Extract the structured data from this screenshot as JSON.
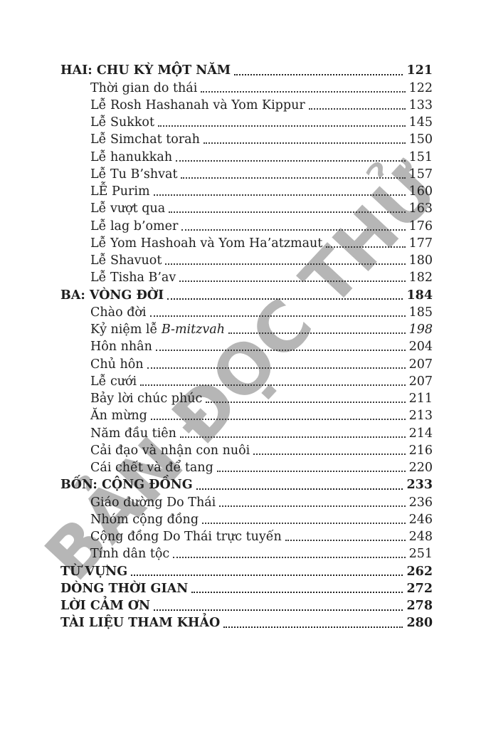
{
  "page": {
    "watermark": "BẢN ĐỌC THỬ",
    "background_color": "#ffffff",
    "text_color": "#1e1e1e",
    "watermark_color": "#b6b6b6"
  },
  "toc": {
    "entries": [
      {
        "label": "HAI: CHU KỲ MỘT NĂM",
        "page": "121",
        "level": 0,
        "bold": true
      },
      {
        "label": "Thời gian do thái",
        "page": "122",
        "level": 1,
        "bold": false
      },
      {
        "label": "Lễ Rosh Hashanah và Yom Kippur",
        "page": "133",
        "level": 1,
        "bold": false
      },
      {
        "label": "Lễ Sukkot",
        "page": "145",
        "level": 1,
        "bold": false
      },
      {
        "label": "Lễ Simchat torah",
        "page": "150",
        "level": 1,
        "bold": false
      },
      {
        "label": "Lễ hanukkah",
        "page": "151",
        "level": 1,
        "bold": false
      },
      {
        "label": "Lễ Tu B’shvat",
        "page": "157",
        "level": 1,
        "bold": false
      },
      {
        "label": "LỄ Purim",
        "page": "160",
        "level": 1,
        "bold": false
      },
      {
        "label": "Lễ vượt qua",
        "page": "163",
        "level": 1,
        "bold": false
      },
      {
        "label": "Lễ lag b’omer",
        "page": "176",
        "level": 1,
        "bold": false
      },
      {
        "label": "Lễ Yom Hashoah và Yom Ha’atzmaut",
        "page": "177",
        "level": 1,
        "bold": false
      },
      {
        "label": "Lễ Shavuot",
        "page": "180",
        "level": 1,
        "bold": false
      },
      {
        "label": "Lễ Tisha B’av",
        "page": "182",
        "level": 1,
        "bold": false
      },
      {
        "label": "BA: VÒNG ĐỜI",
        "page": "184",
        "level": 0,
        "bold": true
      },
      {
        "label": "Chào đời",
        "page": "185",
        "level": 1,
        "bold": false
      },
      {
        "label": "Kỷ niệm lễ ",
        "italic_suffix": "B-mitzvah",
        "page": "198",
        "page_italic": true,
        "level": 1,
        "bold": false
      },
      {
        "label": "Hôn nhân",
        "page": "204",
        "level": 1,
        "bold": false
      },
      {
        "label": "Chủ hôn",
        "page": "207",
        "level": 1,
        "bold": false
      },
      {
        "label": "Lễ cưới",
        "page": "207",
        "level": 1,
        "bold": false
      },
      {
        "label": "Bảy lời chúc phúc",
        "page": "211",
        "level": 1,
        "bold": false
      },
      {
        "label": "Ăn mừng",
        "page": "213",
        "level": 1,
        "bold": false
      },
      {
        "label": "Năm đầu tiên",
        "page": "214",
        "level": 1,
        "bold": false
      },
      {
        "label": "Cải đạo và nhận con nuôi",
        "page": "216",
        "level": 1,
        "bold": false
      },
      {
        "label": "Cái chết và để tang",
        "page": "220",
        "level": 1,
        "bold": false
      },
      {
        "label": "BỐN: CỘNG ĐỒNG",
        "page": "233",
        "level": 0,
        "bold": true
      },
      {
        "label": "Giáo đường Do Thái",
        "page": "236",
        "level": 1,
        "bold": false
      },
      {
        "label": "Nhóm cộng đồng",
        "page": "246",
        "level": 1,
        "bold": false
      },
      {
        "label": "Cộng đồng Do Thái trực tuyến",
        "page": "248",
        "level": 1,
        "bold": false
      },
      {
        "label": "Tính dân tộc",
        "page": "251",
        "level": 1,
        "bold": false
      },
      {
        "label": "TỪ VỰNG",
        "page": "262",
        "level": 0,
        "bold": true
      },
      {
        "label": "DÒNG THỜI GIAN",
        "page": "272",
        "level": 0,
        "bold": true
      },
      {
        "label": "LỜI CẢM ƠN",
        "page": "278",
        "level": 0,
        "bold": true
      },
      {
        "label": "TÀI LIỆU THAM KHẢO",
        "page": "280",
        "level": 0,
        "bold": true
      }
    ]
  }
}
